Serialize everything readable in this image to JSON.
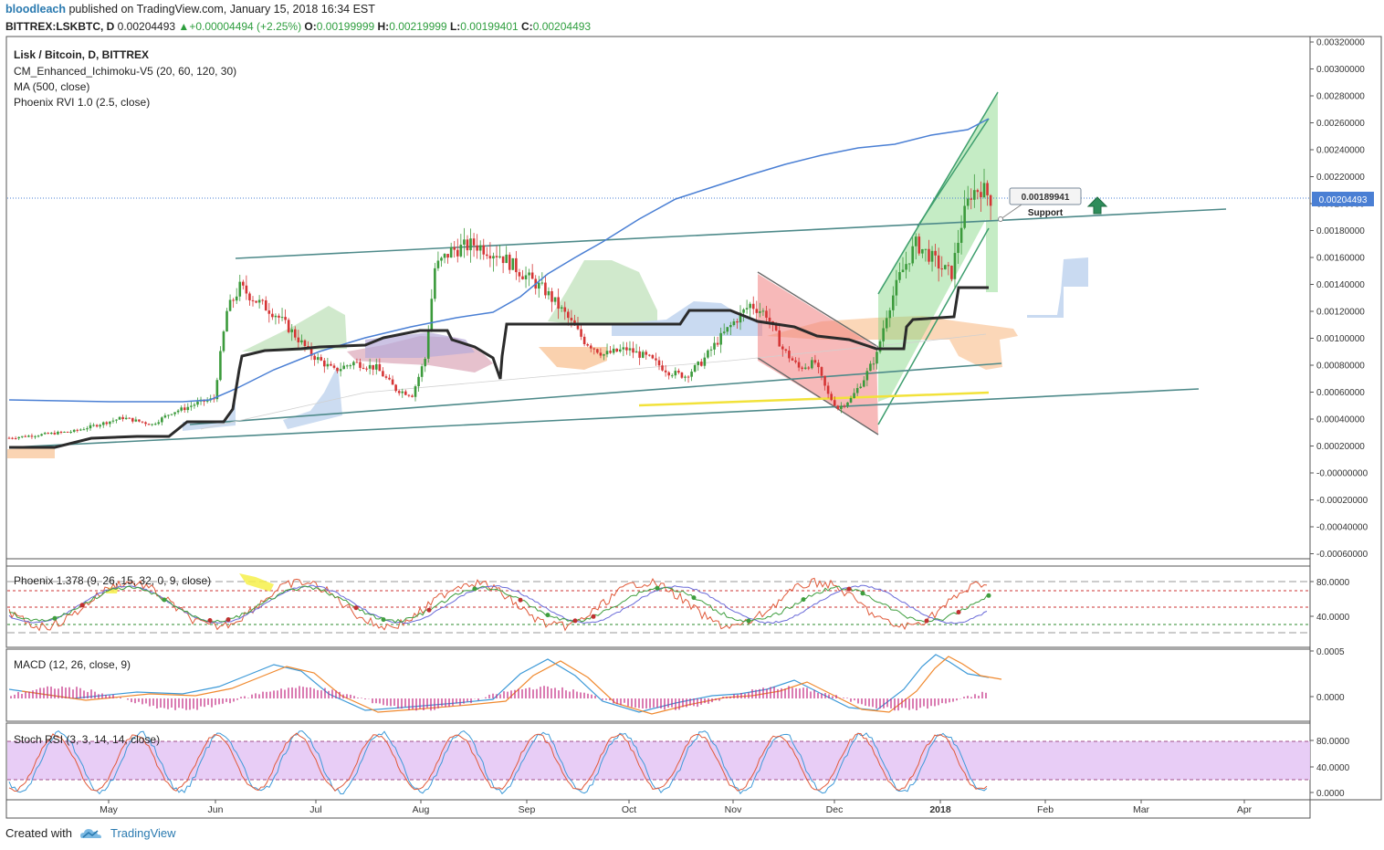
{
  "header": {
    "user": "bloodleach",
    "published": "published on TradingView.com, January 15, 2018 16:34 EST",
    "symbol": "BITTREX:LSKBTC, D",
    "price": "0.00204493",
    "change": "+0.00004494 (+2.25%)",
    "o_label": "O:",
    "o": "0.00199999",
    "h_label": "H:",
    "h": "0.00219999",
    "l_label": "L:",
    "l": "0.00199401",
    "c_label": "C:",
    "c": "0.00204493"
  },
  "legend": {
    "main_title": "Lisk / Bitcoin, D, BITTREX",
    "ichimoku": "CM_Enhanced_Ichimoku-V5 (20, 60, 120, 30)",
    "ma": "MA (500, close)",
    "rvi": "Phoenix RVI 1.0 (2.5, close)",
    "phoenix": "Phoenix 1.378 (9, 26, 15, 32, 0, 9, close)",
    "macd": "MACD (12, 26, close, 9)",
    "stoch": "Stoch RSI (3, 3, 14, 14, close)"
  },
  "annotations": {
    "support_value": "0.00189941",
    "support_label": "Support",
    "price_tag": "0.00204493"
  },
  "footer": {
    "created": "Created with",
    "brand": "TradingView"
  },
  "colors": {
    "up": "#3b9a3b",
    "down": "#d53535",
    "ma": "#4a7fd4",
    "kijun": "#2b2b2b",
    "channel": "#4e8a8a",
    "green_zone": "#7ed47e",
    "red_zone": "#f07f7f",
    "macd": "#3e9ad8",
    "signal": "#f08a30",
    "hist": "#c2247f",
    "stoch_band": "#e6c8f5",
    "logo": "#2a7ab0"
  },
  "chart_data": {
    "type": "candlestick",
    "x_axis_labels": [
      "May",
      "Jun",
      "Jul",
      "Aug",
      "Sep",
      "Oct",
      "Nov",
      "Dec",
      "2018",
      "Feb",
      "Mar",
      "Apr"
    ],
    "price_axis_labels": [
      "0.00320000",
      "0.00300000",
      "0.00280000",
      "0.00260000",
      "0.00240000",
      "0.00220000",
      "0.00200000",
      "0.00180000",
      "0.00160000",
      "0.00140000",
      "0.00120000",
      "0.00100000",
      "0.00080000",
      "0.00060000",
      "0.00040000",
      "0.00020000",
      "-0.00000000",
      "-0.00020000",
      "-0.00040000",
      "-0.00060000"
    ],
    "price_range": [
      -0.0006,
      0.0032
    ],
    "phoenix_axis_labels": [
      "80.0000",
      "40.0000"
    ],
    "macd_axis_labels": [
      "0.0005",
      "0.0000"
    ],
    "stoch_axis_labels": [
      "80.0000",
      "40.0000",
      "0.0000"
    ],
    "price_path": [
      [
        0,
        0.00026
      ],
      [
        20,
        0.00031
      ],
      [
        35,
        0.00041
      ],
      [
        44,
        0.00036
      ],
      [
        50,
        0.00045
      ],
      [
        54,
        0.00048
      ],
      [
        58,
        0.00052
      ],
      [
        63,
        0.00055
      ],
      [
        67,
        0.0012
      ],
      [
        71,
        0.00138
      ],
      [
        76,
        0.00128
      ],
      [
        82,
        0.00118
      ],
      [
        87,
        0.00105
      ],
      [
        93,
        0.00088
      ],
      [
        100,
        0.00076
      ],
      [
        106,
        0.00082
      ],
      [
        113,
        0.00078
      ],
      [
        119,
        0.00062
      ],
      [
        124,
        0.00058
      ],
      [
        128,
        0.00085
      ],
      [
        131,
        0.00152
      ],
      [
        136,
        0.00165
      ],
      [
        143,
        0.0017
      ],
      [
        151,
        0.00162
      ],
      [
        158,
        0.00148
      ],
      [
        165,
        0.00135
      ],
      [
        171,
        0.00118
      ],
      [
        177,
        0.00098
      ],
      [
        183,
        0.00088
      ],
      [
        190,
        0.00092
      ],
      [
        197,
        0.00085
      ],
      [
        203,
        0.00075
      ],
      [
        208,
        0.00072
      ],
      [
        213,
        0.00082
      ],
      [
        218,
        0.00098
      ],
      [
        223,
        0.00112
      ],
      [
        228,
        0.00125
      ],
      [
        233,
        0.00118
      ],
      [
        238,
        0.00092
      ],
      [
        243,
        0.00078
      ],
      [
        248,
        0.00082
      ],
      [
        252,
        0.00058
      ],
      [
        255,
        0.00048
      ],
      [
        259,
        0.00055
      ],
      [
        263,
        0.0007
      ],
      [
        267,
        0.00088
      ],
      [
        270,
        0.00118
      ],
      [
        274,
        0.00146
      ],
      [
        279,
        0.0017
      ],
      [
        283,
        0.00162
      ],
      [
        287,
        0.00152
      ],
      [
        290,
        0.00148
      ],
      [
        293,
        0.00185
      ],
      [
        296,
        0.00208
      ],
      [
        299,
        0.00212
      ],
      [
        302,
        0.00204
      ]
    ]
  }
}
